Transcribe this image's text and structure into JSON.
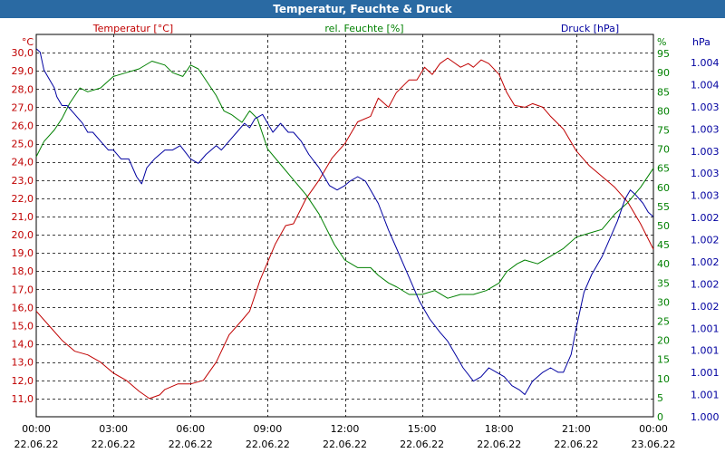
{
  "window": {
    "title": "Temperatur, Feuchte & Druck"
  },
  "colors": {
    "temp": "#c00000",
    "hum": "#008000",
    "press": "#0000a0",
    "title_bg": "#2a6aa3"
  },
  "chart_data": {
    "type": "line",
    "title": "Temperatur, Feuchte & Druck",
    "legend": "top",
    "grid": true,
    "x_hours": [
      0,
      3,
      6,
      9,
      12,
      15,
      18,
      21,
      24
    ],
    "x_tick_times": [
      "00:00",
      "03:00",
      "06:00",
      "09:00",
      "12:00",
      "15:00",
      "18:00",
      "21:00",
      "00:00"
    ],
    "x_tick_dates": [
      "22.06.22",
      "22.06.22",
      "22.06.22",
      "22.06.22",
      "22.06.22",
      "22.06.22",
      "22.06.22",
      "22.06.22",
      "23.06.22"
    ],
    "axes": {
      "temp": {
        "label": "Temperatur [°C]",
        "unit": "°C",
        "range": [
          10.0,
          31.0
        ],
        "ticks": [
          "30,0",
          "29,0",
          "28,0",
          "27,0",
          "26,0",
          "25,0",
          "24,0",
          "23,0",
          "22,0",
          "21,0",
          "20,0",
          "19,0",
          "18,0",
          "17,0",
          "16,0",
          "15,0",
          "14,0",
          "13,0",
          "12,0",
          "11,0"
        ]
      },
      "hum": {
        "label": "rel. Feuchte [%]",
        "unit": "%",
        "range": [
          0,
          100
        ],
        "ticks": [
          "95",
          "90",
          "85",
          "80",
          "75",
          "70",
          "65",
          "60",
          "55",
          "50",
          "45",
          "40",
          "35",
          "30",
          "25",
          "20",
          "15",
          "10",
          "5",
          "0"
        ]
      },
      "press": {
        "label": "Druck [hPa]",
        "unit": "hPa",
        "range": [
          1000.0,
          1004.3
        ],
        "ticks": [
          "1.004",
          "1.004",
          "1.003",
          "1.003",
          "1.003",
          "1.003",
          "1.003",
          "1.002",
          "1.002",
          "1.002",
          "1.002",
          "1.002",
          "1.001",
          "1.001",
          "1.001",
          "1.001",
          "1.000"
        ]
      }
    },
    "series": [
      {
        "name": "Temperatur [°C]",
        "axis": "temp",
        "color": "#c00000",
        "points": [
          [
            0,
            15.8
          ],
          [
            0.5,
            15.0
          ],
          [
            1,
            14.2
          ],
          [
            1.5,
            13.6
          ],
          [
            2,
            13.4
          ],
          [
            2.5,
            13.0
          ],
          [
            3,
            12.4
          ],
          [
            3.5,
            12.0
          ],
          [
            4,
            11.4
          ],
          [
            4.4,
            11.0
          ],
          [
            4.8,
            11.2
          ],
          [
            5,
            11.5
          ],
          [
            5.5,
            11.8
          ],
          [
            6,
            11.8
          ],
          [
            6.5,
            12.0
          ],
          [
            7,
            13.0
          ],
          [
            7.5,
            14.5
          ],
          [
            8,
            15.3
          ],
          [
            8.3,
            15.8
          ],
          [
            8.7,
            17.5
          ],
          [
            9,
            18.5
          ],
          [
            9.3,
            19.5
          ],
          [
            9.7,
            20.5
          ],
          [
            10,
            20.6
          ],
          [
            10.5,
            22.0
          ],
          [
            11,
            23.0
          ],
          [
            11.5,
            24.2
          ],
          [
            12,
            25.0
          ],
          [
            12.5,
            26.2
          ],
          [
            13,
            26.5
          ],
          [
            13.3,
            27.5
          ],
          [
            13.7,
            27.0
          ],
          [
            14,
            27.8
          ],
          [
            14.5,
            28.5
          ],
          [
            14.8,
            28.5
          ],
          [
            15.1,
            29.2
          ],
          [
            15.4,
            28.8
          ],
          [
            15.7,
            29.4
          ],
          [
            16,
            29.7
          ],
          [
            16.2,
            29.5
          ],
          [
            16.5,
            29.2
          ],
          [
            16.8,
            29.4
          ],
          [
            17,
            29.2
          ],
          [
            17.3,
            29.6
          ],
          [
            17.6,
            29.4
          ],
          [
            18,
            28.8
          ],
          [
            18.3,
            27.8
          ],
          [
            18.6,
            27.1
          ],
          [
            19,
            27.0
          ],
          [
            19.3,
            27.2
          ],
          [
            19.7,
            27.0
          ],
          [
            20,
            26.5
          ],
          [
            20.5,
            25.8
          ],
          [
            21,
            24.6
          ],
          [
            21.5,
            23.8
          ],
          [
            22,
            23.2
          ],
          [
            22.5,
            22.6
          ],
          [
            23,
            21.8
          ],
          [
            23.5,
            20.6
          ],
          [
            24,
            19.2
          ]
        ]
      },
      {
        "name": "rel. Feuchte [%]",
        "axis": "hum",
        "color": "#008000",
        "points": [
          [
            0,
            68
          ],
          [
            0.3,
            72
          ],
          [
            0.7,
            75
          ],
          [
            1,
            78
          ],
          [
            1.3,
            82
          ],
          [
            1.7,
            86
          ],
          [
            2,
            85
          ],
          [
            2.5,
            86
          ],
          [
            3,
            89
          ],
          [
            3.5,
            90
          ],
          [
            4,
            91
          ],
          [
            4.5,
            93
          ],
          [
            5,
            92
          ],
          [
            5.3,
            90
          ],
          [
            5.7,
            89
          ],
          [
            6,
            92
          ],
          [
            6.3,
            91
          ],
          [
            6.6,
            88
          ],
          [
            7,
            84
          ],
          [
            7.3,
            80
          ],
          [
            7.6,
            79
          ],
          [
            8,
            77
          ],
          [
            8.3,
            80
          ],
          [
            8.6,
            78
          ],
          [
            9,
            70
          ],
          [
            9.5,
            66
          ],
          [
            10,
            62
          ],
          [
            10.5,
            58
          ],
          [
            11,
            53
          ],
          [
            11.3,
            49
          ],
          [
            11.6,
            45
          ],
          [
            12,
            41
          ],
          [
            12.5,
            39
          ],
          [
            13,
            39
          ],
          [
            13.3,
            37
          ],
          [
            13.7,
            35
          ],
          [
            14,
            34
          ],
          [
            14.5,
            32
          ],
          [
            15,
            32
          ],
          [
            15.5,
            33
          ],
          [
            16,
            31
          ],
          [
            16.5,
            32
          ],
          [
            17,
            32
          ],
          [
            17.5,
            33
          ],
          [
            18,
            35
          ],
          [
            18.3,
            38
          ],
          [
            18.7,
            40
          ],
          [
            19,
            41
          ],
          [
            19.5,
            40
          ],
          [
            20,
            42
          ],
          [
            20.5,
            44
          ],
          [
            21,
            47
          ],
          [
            21.5,
            48
          ],
          [
            22,
            49
          ],
          [
            22.5,
            53
          ],
          [
            23,
            56
          ],
          [
            23.5,
            60
          ],
          [
            24,
            65
          ]
        ]
      },
      {
        "name": "Druck [hPa]",
        "axis": "press",
        "color": "#0000a0",
        "points": [
          [
            0,
            1004.14
          ],
          [
            0.15,
            1004.1
          ],
          [
            0.3,
            1003.9
          ],
          [
            0.5,
            1003.8
          ],
          [
            0.7,
            1003.7
          ],
          [
            0.8,
            1003.6
          ],
          [
            1,
            1003.5
          ],
          [
            1.2,
            1003.5
          ],
          [
            1.5,
            1003.4
          ],
          [
            1.8,
            1003.3
          ],
          [
            2,
            1003.2
          ],
          [
            2.2,
            1003.2
          ],
          [
            2.5,
            1003.1
          ],
          [
            2.8,
            1003.0
          ],
          [
            3,
            1003.0
          ],
          [
            3.3,
            1002.9
          ],
          [
            3.6,
            1002.9
          ],
          [
            3.9,
            1002.7
          ],
          [
            4.1,
            1002.62
          ],
          [
            4.3,
            1002.8
          ],
          [
            4.6,
            1002.9
          ],
          [
            5,
            1003.0
          ],
          [
            5.3,
            1003.0
          ],
          [
            5.6,
            1003.05
          ],
          [
            6,
            1002.9
          ],
          [
            6.3,
            1002.85
          ],
          [
            6.6,
            1002.95
          ],
          [
            7,
            1003.05
          ],
          [
            7.2,
            1003.0
          ],
          [
            7.5,
            1003.1
          ],
          [
            7.8,
            1003.2
          ],
          [
            8.1,
            1003.3
          ],
          [
            8.3,
            1003.25
          ],
          [
            8.5,
            1003.35
          ],
          [
            8.8,
            1003.4
          ],
          [
            9,
            1003.3
          ],
          [
            9.2,
            1003.2
          ],
          [
            9.5,
            1003.3
          ],
          [
            9.8,
            1003.2
          ],
          [
            10,
            1003.2
          ],
          [
            10.3,
            1003.1
          ],
          [
            10.6,
            1002.95
          ],
          [
            11,
            1002.8
          ],
          [
            11.4,
            1002.6
          ],
          [
            11.7,
            1002.55
          ],
          [
            12,
            1002.6
          ],
          [
            12.2,
            1002.65
          ],
          [
            12.5,
            1002.7
          ],
          [
            12.8,
            1002.65
          ],
          [
            13,
            1002.55
          ],
          [
            13.3,
            1002.4
          ],
          [
            13.7,
            1002.1
          ],
          [
            14,
            1001.9
          ],
          [
            14.3,
            1001.7
          ],
          [
            14.6,
            1001.5
          ],
          [
            14.9,
            1001.3
          ],
          [
            15.3,
            1001.1
          ],
          [
            15.7,
            1000.95
          ],
          [
            16,
            1000.85
          ],
          [
            16.3,
            1000.7
          ],
          [
            16.6,
            1000.55
          ],
          [
            17,
            1000.4
          ],
          [
            17.3,
            1000.45
          ],
          [
            17.6,
            1000.55
          ],
          [
            17.9,
            1000.5
          ],
          [
            18.2,
            1000.45
          ],
          [
            18.5,
            1000.35
          ],
          [
            18.8,
            1000.3
          ],
          [
            19,
            1000.25
          ],
          [
            19.3,
            1000.4
          ],
          [
            19.7,
            1000.5
          ],
          [
            20,
            1000.55
          ],
          [
            20.3,
            1000.5
          ],
          [
            20.5,
            1000.5
          ],
          [
            20.8,
            1000.7
          ],
          [
            21,
            1001.0
          ],
          [
            21.3,
            1001.4
          ],
          [
            21.6,
            1001.6
          ],
          [
            22,
            1001.8
          ],
          [
            22.3,
            1002.0
          ],
          [
            22.6,
            1002.2
          ],
          [
            22.9,
            1002.45
          ],
          [
            23.1,
            1002.55
          ],
          [
            23.3,
            1002.5
          ],
          [
            23.6,
            1002.4
          ],
          [
            23.8,
            1002.3
          ],
          [
            24,
            1002.25
          ]
        ]
      }
    ]
  }
}
